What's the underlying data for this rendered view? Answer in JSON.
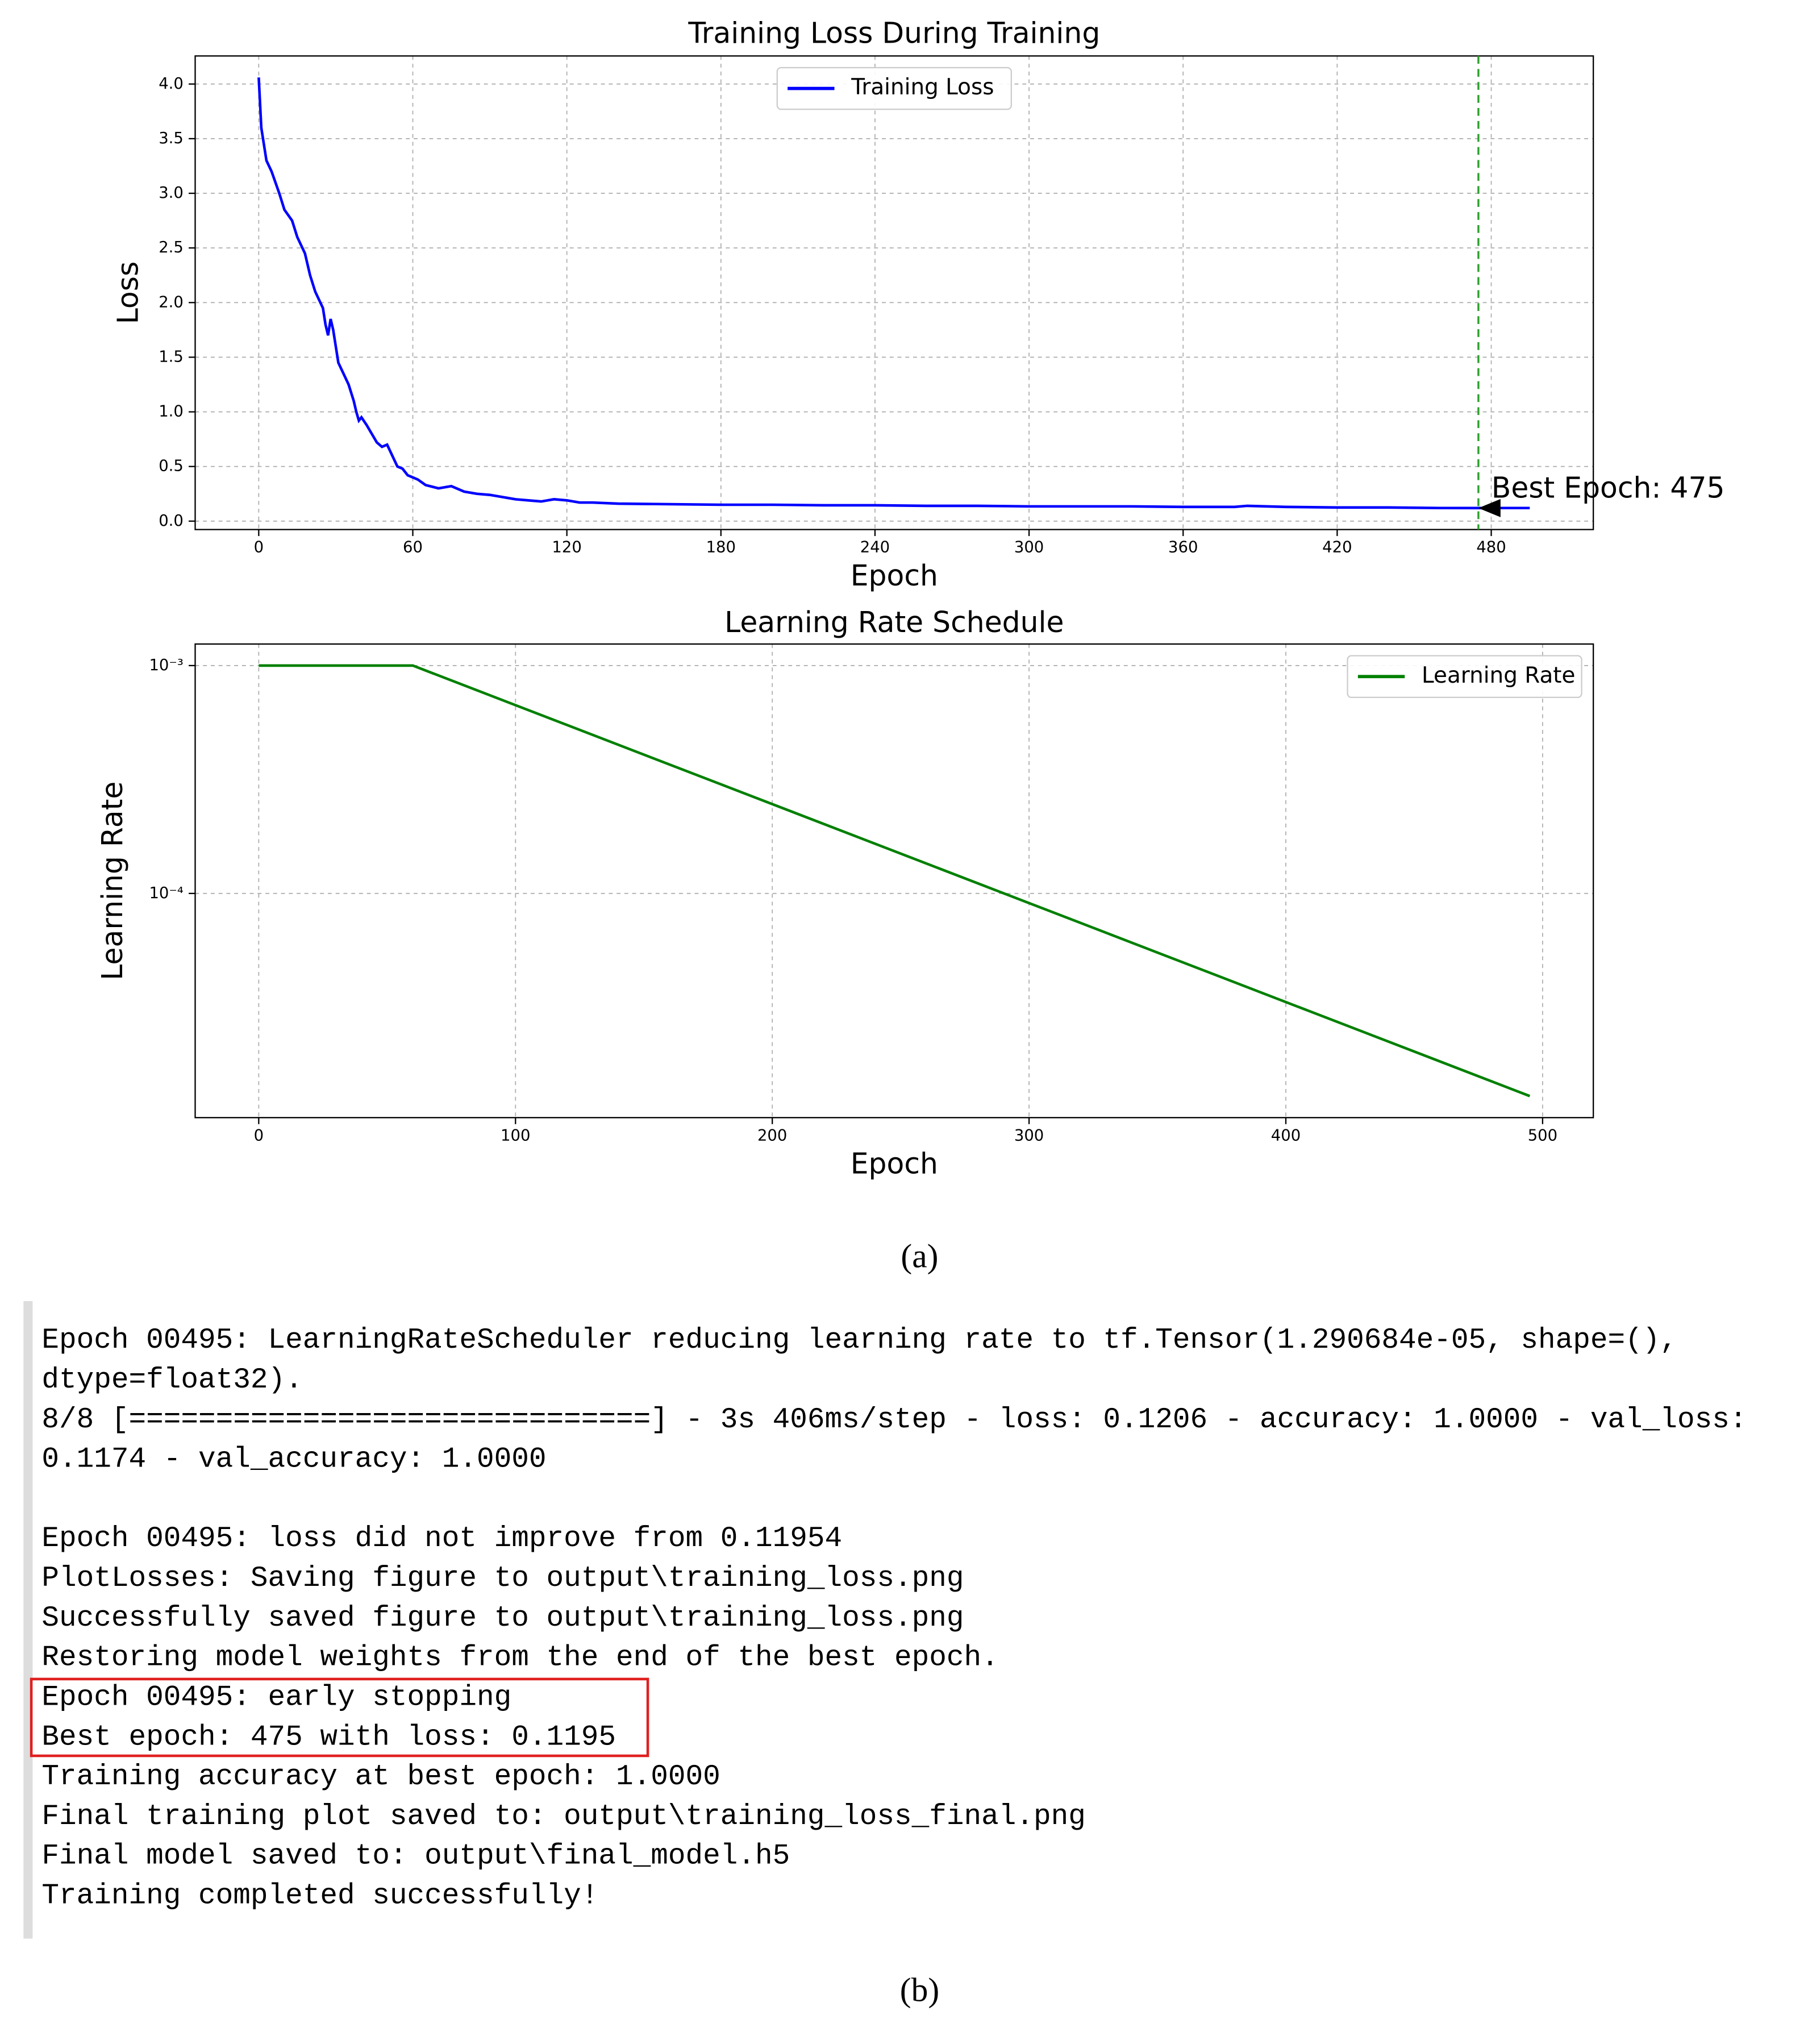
{
  "chart_data": [
    {
      "type": "line",
      "title": "Training Loss During Training",
      "xlabel": "Epoch",
      "ylabel": "Loss",
      "x": [
        0,
        1,
        3,
        5,
        8,
        10,
        13,
        15,
        18,
        20,
        22,
        25,
        26,
        27,
        28,
        29,
        30,
        31,
        33,
        35,
        37,
        38,
        39,
        40,
        42,
        44,
        46,
        48,
        50,
        52,
        54,
        56,
        58,
        60,
        62,
        65,
        70,
        75,
        80,
        85,
        90,
        95,
        100,
        105,
        110,
        115,
        120,
        125,
        130,
        140,
        160,
        180,
        200,
        220,
        240,
        260,
        280,
        300,
        320,
        340,
        360,
        380,
        385,
        400,
        420,
        440,
        460,
        475,
        480,
        495
      ],
      "series": [
        {
          "name": "Training Loss",
          "color": "#0000ff",
          "values": [
            4.06,
            3.6,
            3.3,
            3.2,
            3.0,
            2.85,
            2.75,
            2.6,
            2.45,
            2.25,
            2.1,
            1.95,
            1.8,
            1.7,
            1.85,
            1.75,
            1.6,
            1.45,
            1.35,
            1.25,
            1.1,
            1.0,
            0.92,
            0.95,
            0.88,
            0.8,
            0.72,
            0.68,
            0.7,
            0.6,
            0.5,
            0.48,
            0.42,
            0.4,
            0.38,
            0.33,
            0.3,
            0.32,
            0.27,
            0.25,
            0.24,
            0.22,
            0.2,
            0.19,
            0.18,
            0.2,
            0.19,
            0.17,
            0.17,
            0.16,
            0.155,
            0.15,
            0.15,
            0.145,
            0.145,
            0.14,
            0.14,
            0.135,
            0.135,
            0.135,
            0.13,
            0.13,
            0.14,
            0.13,
            0.125,
            0.125,
            0.12,
            0.1195,
            0.12,
            0.12
          ]
        }
      ],
      "xlim": [
        -24.75,
        519.75
      ],
      "xticks": [
        0,
        60,
        120,
        180,
        240,
        300,
        360,
        420,
        480
      ],
      "ylim": [
        -0.077,
        4.257
      ],
      "yticks": [
        {
          "value": 0,
          "label": "0.0"
        },
        0.5,
        {
          "value": 1,
          "label": "1.0"
        },
        1.5,
        {
          "value": 2,
          "label": "2.0"
        },
        2.5,
        {
          "value": 3,
          "label": "3.0"
        },
        3.5,
        {
          "value": 4,
          "label": "4.0"
        }
      ],
      "grid": true,
      "legend": "upper center",
      "best_epoch": {
        "x": 475,
        "y": 0.1195,
        "label": "Best Epoch: 475",
        "color": "#2ca02c"
      }
    },
    {
      "type": "line",
      "title": "Learning Rate Schedule",
      "xlabel": "Epoch",
      "ylabel": "Learning Rate",
      "x": [
        0,
        60,
        495
      ],
      "series": [
        {
          "name": "Learning Rate",
          "color": "#008000",
          "values": [
            0.001,
            0.001,
            1.290684e-05
          ]
        }
      ],
      "xlim": [
        -24.75,
        519.75
      ],
      "xticks": [
        0,
        100,
        200,
        300,
        400,
        500
      ],
      "yscale": "log",
      "ylim": [
        1.038e-05,
        0.001243
      ],
      "yticks": [
        {
          "value": 0.001,
          "label": "10⁻³"
        },
        {
          "value": 0.0001,
          "label": "10⁻⁴"
        }
      ],
      "grid": true,
      "legend": "upper right"
    }
  ],
  "captions": [
    "(a)",
    "(b)"
  ],
  "console": {
    "blocks": [
      [
        "Epoch 00495: LearningRateScheduler reducing learning rate to tf.Tensor(1.290684e-05, shape=(),",
        "dtype=float32).",
        "8/8 [==============================] - 3s 406ms/step - loss: 0.1206 - accuracy: 1.0000 - val_loss:",
        "0.1174 - val_accuracy: 1.0000"
      ],
      [
        "Epoch 00495: loss did not improve from 0.11954",
        "PlotLosses: Saving figure to output\\training_loss.png",
        "Successfully saved figure to output\\training_loss.png",
        "Restoring model weights from the end of the best epoch.",
        "Epoch 00495: early stopping",
        "Best epoch: 475 with loss: 0.1195",
        "Training accuracy at best epoch: 1.0000",
        "Final training plot saved to: output\\training_loss_final.png",
        "Final model saved to: output\\final_model.h5",
        "Training completed successfully!"
      ]
    ]
  }
}
